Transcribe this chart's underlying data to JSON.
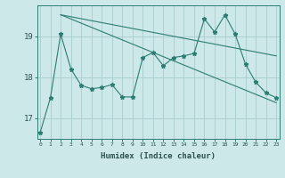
{
  "title": "",
  "xlabel": "Humidex (Indice chaleur)",
  "background_color": "#cce8e8",
  "line_color": "#2e7d72",
  "grid_color": "#aacccc",
  "x_ticks": [
    0,
    1,
    2,
    3,
    4,
    5,
    6,
    7,
    8,
    9,
    10,
    11,
    12,
    13,
    14,
    15,
    16,
    17,
    18,
    19,
    20,
    21,
    22,
    23
  ],
  "y_ticks": [
    17,
    18,
    19
  ],
  "ylim": [
    16.5,
    19.75
  ],
  "xlim": [
    -0.3,
    23.3
  ],
  "series1_x": [
    0,
    1,
    2,
    3,
    4,
    5,
    6,
    7,
    8,
    9,
    10,
    11,
    12,
    13,
    14,
    15,
    16,
    17,
    18,
    19,
    20,
    21,
    22,
    23
  ],
  "series1_y": [
    16.65,
    17.5,
    19.05,
    18.2,
    17.8,
    17.72,
    17.75,
    17.82,
    17.52,
    17.52,
    18.48,
    18.6,
    18.28,
    18.48,
    18.52,
    18.58,
    19.42,
    19.1,
    19.52,
    19.05,
    18.32,
    17.88,
    17.62,
    17.5
  ],
  "series2_x": [
    2,
    23
  ],
  "series2_y": [
    19.52,
    17.38
  ],
  "series3_x": [
    2,
    23
  ],
  "series3_y": [
    19.52,
    18.52
  ]
}
